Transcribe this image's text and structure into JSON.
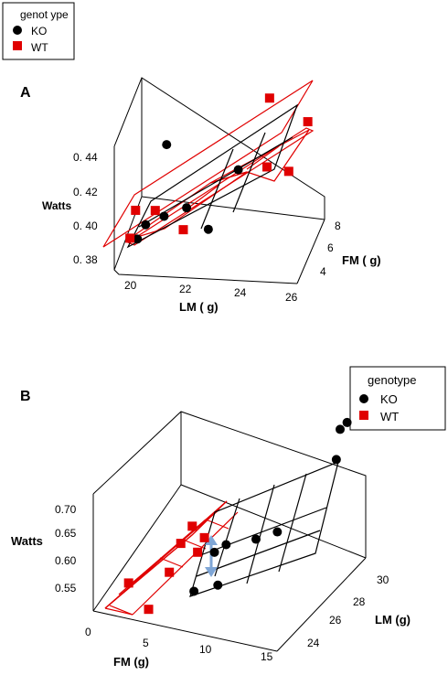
{
  "chart_data": [
    {
      "type": "scatter",
      "panel_label": "A",
      "legend": {
        "title": "genot ype",
        "entries": [
          "KO",
          "WT"
        ],
        "placement": "top-left"
      },
      "zlabel": "Watts",
      "xlabel": "LM ( g)",
      "ylabel": "FM ( g)",
      "zticks": [
        "0. 44",
        "0. 42",
        "0. 40",
        "0. 38"
      ],
      "xticks": [
        "20",
        "22",
        "24",
        "26"
      ],
      "yticks": [
        "8",
        "6",
        "4"
      ],
      "xlim": [
        19,
        26
      ],
      "ylim": [
        3,
        8
      ],
      "zlim": [
        0.37,
        0.46
      ],
      "series": [
        {
          "name": "KO",
          "marker": "circle",
          "color": "#000000",
          "points": [
            {
              "lm": 20.5,
              "fm": 5.4,
              "watts": 0.441
            },
            {
              "lm": 20.2,
              "fm": 3.0,
              "watts": 0.406
            },
            {
              "lm": 20.8,
              "fm": 3.5,
              "watts": 0.408
            },
            {
              "lm": 21.6,
              "fm": 3.8,
              "watts": 0.412
            },
            {
              "lm": 19.8,
              "fm": 3.4,
              "watts": 0.392
            },
            {
              "lm": 22.6,
              "fm": 3.0,
              "watts": 0.405
            },
            {
              "lm": 23.2,
              "fm": 5.6,
              "watts": 0.424
            }
          ]
        },
        {
          "name": "WT",
          "marker": "square",
          "color": "#e00000",
          "points": [
            {
              "lm": 24.0,
              "fm": 7.5,
              "watts": 0.458
            },
            {
              "lm": 25.4,
              "fm": 7.8,
              "watts": 0.44
            },
            {
              "lm": 25.3,
              "fm": 4.8,
              "watts": 0.432
            },
            {
              "lm": 24.3,
              "fm": 5.6,
              "watts": 0.427
            },
            {
              "lm": 19.5,
              "fm": 4.5,
              "watts": 0.402
            },
            {
              "lm": 19.6,
              "fm": 3.0,
              "watts": 0.396
            },
            {
              "lm": 20.4,
              "fm": 3.8,
              "watts": 0.409
            },
            {
              "lm": 21.6,
              "fm": 3.2,
              "watts": 0.402
            }
          ]
        }
      ]
    },
    {
      "type": "scatter",
      "panel_label": "B",
      "legend": {
        "title": "genotype",
        "entries": [
          "KO",
          "WT"
        ],
        "placement": "top-right"
      },
      "zlabel": "Watts",
      "xlabel": "FM (g)",
      "ylabel": "LM (g)",
      "zticks": [
        "0.70",
        "0.65",
        "0.60",
        "0.55"
      ],
      "xticks": [
        "0",
        "5",
        "10",
        "15"
      ],
      "yticks": [
        "30",
        "28",
        "26",
        "24"
      ],
      "xlim": [
        0,
        15
      ],
      "ylim": [
        23,
        31
      ],
      "zlim": [
        0.52,
        0.72
      ],
      "series": [
        {
          "name": "KO",
          "marker": "circle",
          "color": "#000000",
          "points": [
            {
              "fm": 13.5,
              "lm": 30.5,
              "watts": 0.69
            },
            {
              "fm": 13.8,
              "lm": 30.8,
              "watts": 0.695
            },
            {
              "fm": 14.0,
              "lm": 29.6,
              "watts": 0.665
            },
            {
              "fm": 11.5,
              "lm": 27.0,
              "watts": 0.6
            },
            {
              "fm": 10.2,
              "lm": 26.5,
              "watts": 0.595
            },
            {
              "fm": 8.2,
              "lm": 26.0,
              "watts": 0.59
            },
            {
              "fm": 7.6,
              "lm": 25.6,
              "watts": 0.585
            },
            {
              "fm": 8.6,
              "lm": 24.8,
              "watts": 0.555
            },
            {
              "fm": 7.0,
              "lm": 24.4,
              "watts": 0.548
            }
          ]
        },
        {
          "name": "WT",
          "marker": "square",
          "color": "#e00000",
          "points": [
            {
              "fm": 2.0,
              "lm": 24.0,
              "watts": 0.55
            },
            {
              "fm": 4.0,
              "lm": 23.6,
              "watts": 0.525
            },
            {
              "fm": 4.8,
              "lm": 24.6,
              "watts": 0.565
            },
            {
              "fm": 5.2,
              "lm": 25.2,
              "watts": 0.6
            },
            {
              "fm": 5.6,
              "lm": 25.8,
              "watts": 0.615
            },
            {
              "fm": 6.4,
              "lm": 25.4,
              "watts": 0.585
            },
            {
              "fm": 6.6,
              "lm": 25.8,
              "watts": 0.6
            }
          ]
        }
      ]
    }
  ]
}
